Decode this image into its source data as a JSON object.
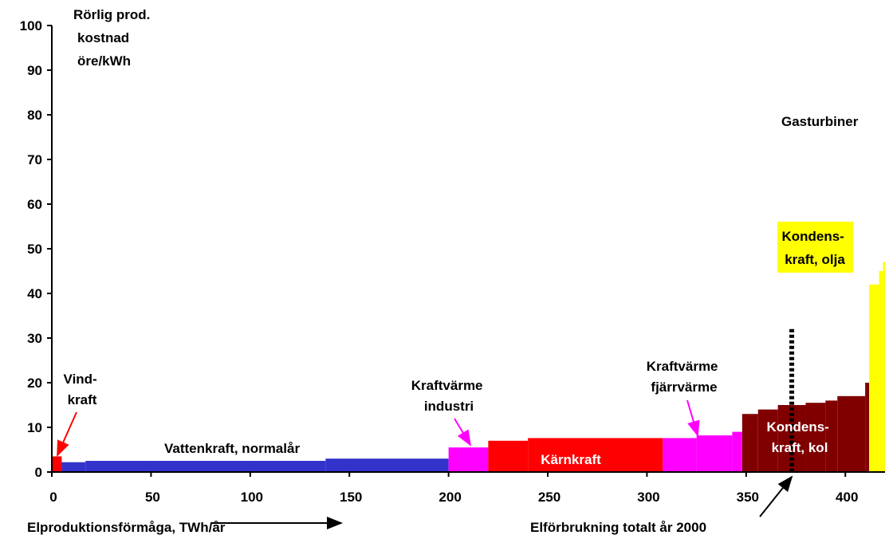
{
  "chart_data": {
    "type": "area",
    "title": "",
    "ylabel": [
      "Rörlig prod.",
      "kostnad",
      "öre/kWh"
    ],
    "xlabel": "Elproduktionsförmåga, TWh/år",
    "xlim": [
      0,
      420
    ],
    "ylim": [
      0,
      100
    ],
    "xticks": [
      0,
      50,
      100,
      150,
      200,
      250,
      300,
      350,
      400
    ],
    "yticks": [
      0,
      10,
      20,
      30,
      40,
      50,
      60,
      70,
      80,
      90,
      100
    ],
    "grid": false,
    "legend": "none",
    "colors": {
      "vind": "#ff0000",
      "vatten": "#3333cc",
      "kraftvarme": "#ff00ff",
      "karnkraft": "#ff0000",
      "kondens_kol": "#800000",
      "kondens_olja": "#ffff00",
      "axis": "#000000"
    },
    "series": [
      {
        "name": "Vindkraft",
        "color": "vind",
        "steps": [
          [
            0,
            5,
            3.5
          ]
        ]
      },
      {
        "name": "Vattenkraft, normalår",
        "color": "vatten",
        "steps": [
          [
            5,
            17,
            2.2
          ],
          [
            17,
            138,
            2.5
          ],
          [
            138,
            200,
            3
          ]
        ]
      },
      {
        "name": "Kraftvärme industri",
        "color": "kraftvarme",
        "steps": [
          [
            200,
            220,
            5.5
          ]
        ]
      },
      {
        "name": "Kärnkraft",
        "color": "karnkraft",
        "steps": [
          [
            220,
            240,
            7
          ],
          [
            240,
            308,
            7.6
          ]
        ]
      },
      {
        "name": "Kraftvärme fjärrvärme",
        "color": "kraftvarme",
        "steps": [
          [
            308,
            325,
            7.6
          ],
          [
            325,
            343,
            8.2
          ],
          [
            343,
            348,
            9
          ]
        ]
      },
      {
        "name": "Kondenskraft, kol",
        "color": "kondens_kol",
        "steps": [
          [
            348,
            356,
            13
          ],
          [
            356,
            366,
            14
          ],
          [
            366,
            380,
            15
          ],
          [
            380,
            390,
            15.5
          ],
          [
            390,
            396,
            16
          ],
          [
            396,
            410,
            17
          ],
          [
            410,
            412,
            20
          ]
        ]
      },
      {
        "name": "Kondenskraft, olja",
        "color": "kondens_olja",
        "steps": [
          [
            412,
            417,
            42
          ],
          [
            417,
            419,
            45
          ],
          [
            419,
            421,
            47
          ]
        ]
      }
    ],
    "consumption_line": {
      "x": 373,
      "y_top": 32
    },
    "annotations": {
      "vind": [
        "Vind-",
        "kraft"
      ],
      "vatten": "Vattenkraft, normalår",
      "kv_industri": [
        "Kraftvärme",
        "industri"
      ],
      "karnkraft": "Kärnkraft",
      "kv_fjarr": [
        "Kraftvärme",
        "fjärrvärme"
      ],
      "kondens_kol": [
        "Kondens-",
        "kraft, kol"
      ],
      "kondens_olja": [
        "Kondens-",
        "kraft, olja"
      ],
      "gasturbiner": "Gasturbiner",
      "elforbrukning": "Elförbrukning totalt år 2000"
    }
  }
}
